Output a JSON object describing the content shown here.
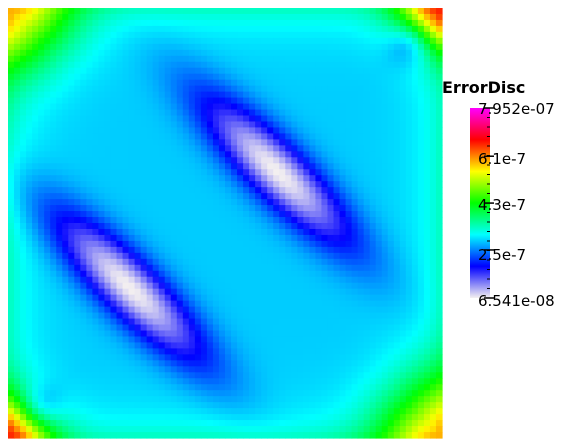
{
  "chart_data": {
    "type": "heatmap",
    "colorbar": {
      "title": "ErrorDisc",
      "max_label": "7.952e-07",
      "min_label": "6.541e-08",
      "tick_labels": [
        "6.1e-7",
        "4.3e-7",
        "2.5e-7"
      ],
      "max": 7.952e-07,
      "min": 6.541e-08,
      "ticks": [
        6.1e-07,
        4.3e-07,
        2.5e-07
      ],
      "colormap": [
        "#f4f0f0",
        "#0000ff",
        "#00ffff",
        "#00ff00",
        "#ffff00",
        "#ff0000",
        "#ff00ff"
      ],
      "legend_position": "right"
    },
    "field_description_values": {
      "domain_x": [
        0,
        1
      ],
      "domain_y": [
        0,
        1
      ],
      "min_regions": "two diagonal elliptical bands",
      "max_regions": "corners"
    }
  }
}
